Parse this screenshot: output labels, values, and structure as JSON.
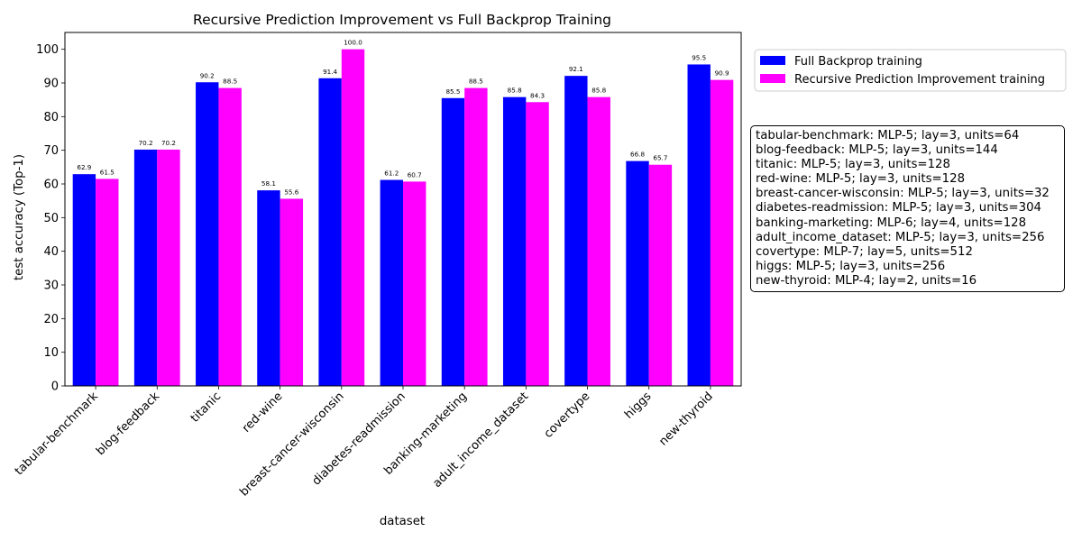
{
  "chart_data": {
    "type": "bar",
    "title": "Recursive Prediction Improvement vs Full Backprop Training",
    "xlabel": "dataset",
    "ylabel": "test accuracy (Top-1)",
    "ylim": [
      0,
      105
    ],
    "yticks": [
      0,
      10,
      20,
      30,
      40,
      50,
      60,
      70,
      80,
      90,
      100
    ],
    "grid": false,
    "legend_position": "top-right outside plot",
    "categories": [
      "tabular-benchmark",
      "blog-feedback",
      "titanic",
      "red-wine",
      "breast-cancer-wisconsin",
      "diabetes-readmission",
      "banking-marketing",
      "adult_income_dataset",
      "covertype",
      "higgs",
      "new-thyroid"
    ],
    "series": [
      {
        "name": "Full Backprop training",
        "color": "#0000ff",
        "values": [
          62.9,
          70.2,
          90.2,
          58.1,
          91.4,
          61.2,
          85.5,
          85.8,
          92.1,
          66.8,
          95.5
        ],
        "labels": [
          "62.9",
          "70.2",
          "90.2",
          "58.1",
          "91.4",
          "61.2",
          "85.5",
          "85.8",
          "92.1",
          "66.8",
          "95.5"
        ]
      },
      {
        "name": "Recursive Prediction Improvement training",
        "color": "#ff00ff",
        "values": [
          61.5,
          70.2,
          88.5,
          55.6,
          100.0,
          60.7,
          88.5,
          84.3,
          85.8,
          65.7,
          90.9
        ],
        "labels": [
          "61.5",
          "70.2",
          "88.5",
          "55.6",
          "100.0",
          "60.7",
          "88.5",
          "84.3",
          "85.8",
          "65.7",
          "90.9"
        ]
      }
    ],
    "annotation_box": [
      "tabular-benchmark: MLP-5; lay=3, units=64",
      "blog-feedback: MLP-5; lay=3, units=144",
      "titanic: MLP-5; lay=3, units=128",
      "red-wine: MLP-5; lay=3, units=128",
      "breast-cancer-wisconsin: MLP-5; lay=3, units=32",
      "diabetes-readmission: MLP-5; lay=3, units=304",
      "banking-marketing: MLP-6; lay=4, units=128",
      "adult_income_dataset: MLP-5; lay=3, units=256",
      "covertype: MLP-7; lay=5, units=512",
      "higgs: MLP-5; lay=3, units=256",
      "new-thyroid: MLP-4; lay=2, units=16"
    ]
  }
}
